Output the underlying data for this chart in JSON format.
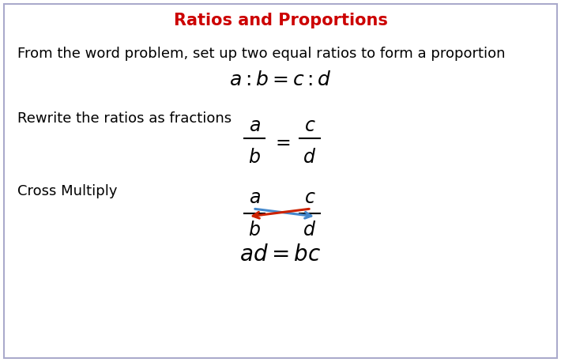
{
  "title": "Ratios and Proportions",
  "title_color": "#cc0000",
  "title_fontsize": 15,
  "bg_color": "#ffffff",
  "border_color": "#aaaacc",
  "text1": "From the word problem, set up two equal ratios to form a proportion",
  "text2": "Rewrite the ratios as fractions",
  "text3": "Cross Multiply",
  "formula1": "$a:b = c:d$",
  "formula4": "$ad = bc$",
  "arrow_red_color": "#cc2200",
  "arrow_blue_color": "#4488cc",
  "text_fontsize": 13,
  "formula_fontsize": 17
}
